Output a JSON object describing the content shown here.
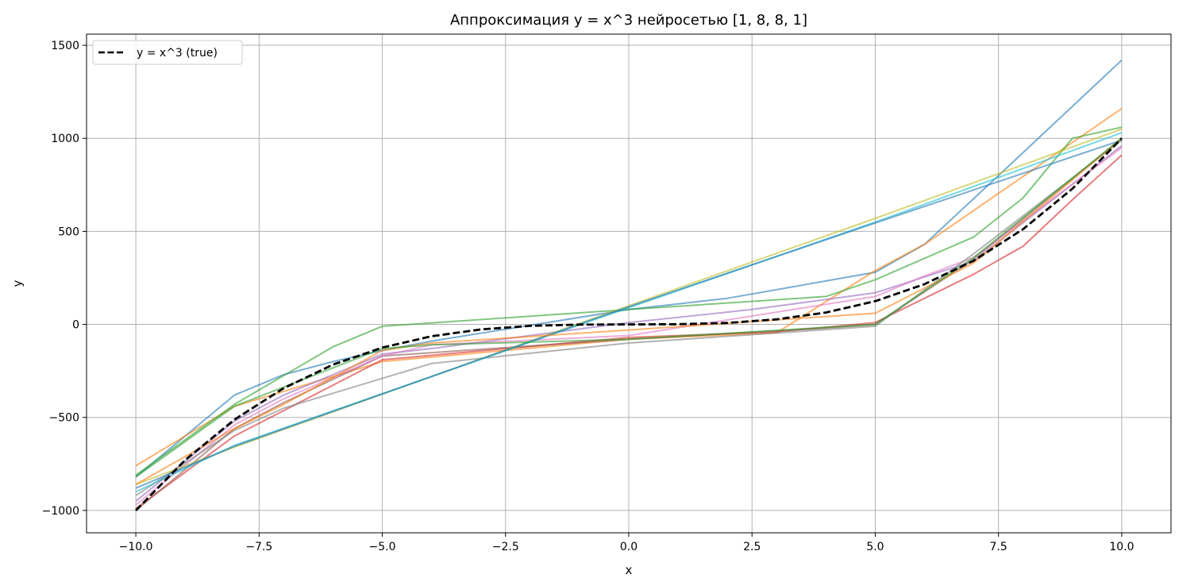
{
  "chart_data": {
    "type": "line",
    "title": "Аппроксимация y = x^3 нейросетью [1, 8, 8, 1]",
    "xlabel": "x",
    "ylabel": "y",
    "xlim": [
      -11,
      11
    ],
    "ylim": [
      -1120,
      1560
    ],
    "xticks": [
      -10,
      -7.5,
      -5,
      -2.5,
      0,
      2.5,
      5,
      7.5,
      10
    ],
    "xtick_labels": [
      "−10.0",
      "−7.5",
      "−5.0",
      "−2.5",
      "0.0",
      "2.5",
      "5.0",
      "7.5",
      "10.0"
    ],
    "yticks": [
      -1000,
      -500,
      0,
      500,
      1000,
      1500
    ],
    "ytick_labels": [
      "−1000",
      "−500",
      "0",
      "500",
      "1000",
      "1500"
    ],
    "grid": true,
    "legend": {
      "location": "upper left",
      "entries": [
        "y = x^3 (true)"
      ]
    },
    "true_series": {
      "name": "y = x^3 (true)",
      "color": "#000000",
      "style": "dashed",
      "x": [
        -10,
        -9,
        -8,
        -7,
        -6,
        -5,
        -4,
        -3,
        -2,
        -1,
        0,
        1,
        2,
        3,
        4,
        5,
        6,
        7,
        8,
        9,
        10
      ],
      "y": [
        -1000,
        -729,
        -512,
        -343,
        -216,
        -125,
        -64,
        -27,
        -8,
        -1,
        0,
        1,
        8,
        27,
        64,
        125,
        216,
        343,
        512,
        729,
        1000
      ]
    },
    "series": [
      {
        "color": "#1f77b4",
        "x": [
          -10,
          -8,
          -7,
          -6,
          -5,
          -4,
          0,
          2,
          5,
          6,
          7.5,
          10
        ],
        "y": [
          -820,
          -380,
          -270,
          -200,
          -140,
          -90,
          80,
          140,
          280,
          430,
          800,
          1420
        ]
      },
      {
        "color": "#ff7f0e",
        "x": [
          -10,
          -8,
          -5,
          0,
          3,
          5,
          6,
          10
        ],
        "y": [
          -760,
          -440,
          -200,
          -80,
          -45,
          290,
          430,
          1160
        ]
      },
      {
        "color": "#2ca02c",
        "x": [
          -10,
          -8,
          -6,
          -5,
          0,
          4,
          5,
          7,
          8,
          9,
          10
        ],
        "y": [
          -810,
          -430,
          -120,
          -10,
          80,
          150,
          240,
          470,
          680,
          1000,
          1060
        ]
      },
      {
        "color": "#d62728",
        "x": [
          -10,
          -8,
          -5,
          0,
          3,
          5,
          6,
          7,
          8,
          9,
          10
        ],
        "y": [
          -990,
          -600,
          -190,
          -70,
          -40,
          10,
          140,
          270,
          420,
          670,
          910
        ]
      },
      {
        "color": "#9467bd",
        "x": [
          -10,
          -8,
          -7,
          -5,
          -4,
          0,
          2.5,
          5,
          7,
          10
        ],
        "y": [
          -950,
          -520,
          -380,
          -160,
          -130,
          10,
          80,
          170,
          340,
          960
        ]
      },
      {
        "color": "#8c564b",
        "x": [
          -10,
          -8,
          -7,
          -5,
          0,
          4,
          5,
          7,
          10
        ],
        "y": [
          -1000,
          -560,
          -420,
          -170,
          -80,
          -20,
          0,
          350,
          1000
        ]
      },
      {
        "color": "#e377c2",
        "x": [
          -10,
          -8,
          -7,
          -5,
          -4,
          0,
          5,
          6,
          7,
          10
        ],
        "y": [
          -970,
          -540,
          -400,
          -170,
          -110,
          -60,
          150,
          260,
          360,
          950
        ]
      },
      {
        "color": "#7f7f7f",
        "x": [
          -10,
          -8,
          -7,
          -4,
          0,
          5,
          7,
          10
        ],
        "y": [
          -920,
          -570,
          -450,
          -210,
          -100,
          -10,
          380,
          990
        ]
      },
      {
        "color": "#bcbd22",
        "x": [
          -10,
          -8,
          0,
          5,
          10
        ],
        "y": [
          -860,
          -660,
          100,
          570,
          1050
        ]
      },
      {
        "color": "#17becf",
        "x": [
          -10,
          -8,
          0,
          5,
          10
        ],
        "y": [
          -900,
          -650,
          90,
          550,
          1030
        ]
      },
      {
        "color": "#1f77b4",
        "x": [
          -10,
          -8,
          0,
          5,
          10
        ],
        "y": [
          -880,
          -655,
          95,
          545,
          990
        ]
      },
      {
        "color": "#ff7f0e",
        "x": [
          -10,
          -8,
          -7,
          -5,
          -4,
          0,
          5,
          7,
          10
        ],
        "y": [
          -860,
          -560,
          -430,
          -140,
          -100,
          -30,
          60,
          330,
          1000
        ]
      },
      {
        "color": "#2ca02c",
        "x": [
          -10,
          -8,
          -5,
          -4,
          0,
          5,
          7,
          10
        ],
        "y": [
          -820,
          -440,
          -130,
          -110,
          -80,
          0,
          360,
          1000
        ]
      }
    ]
  }
}
